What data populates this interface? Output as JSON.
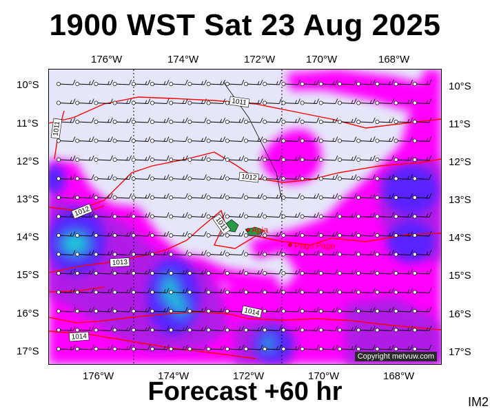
{
  "title": "1900 WST Sat 23 Aug 2025",
  "footer": "Forecast +60 hr",
  "product_code": "IM2",
  "copyright": "Copyright metvuw.com",
  "axes": {
    "lon_ticks": [
      "176°W",
      "174°W",
      "172°W",
      "170°W",
      "168°W"
    ],
    "lat_ticks": [
      "10°S",
      "11°S",
      "12°S",
      "13°S",
      "14°S",
      "15°S",
      "16°S",
      "17°S"
    ]
  },
  "places": [
    {
      "name": "Apia"
    },
    {
      "name": "Pago Pago"
    }
  ],
  "isobar_labels": [
    "1011",
    "1011",
    "1012",
    "1012",
    "1011",
    "1013",
    "1014",
    "1014"
  ],
  "colors": {
    "background_dry": "#e6e6fa",
    "rain_light": "#ff00ff",
    "rain_moderate": "#b01ce6",
    "rain_heavy": "#5a24ff",
    "rain_very_heavy": "#1ec8d8",
    "isobar": "#ff0000"
  }
}
